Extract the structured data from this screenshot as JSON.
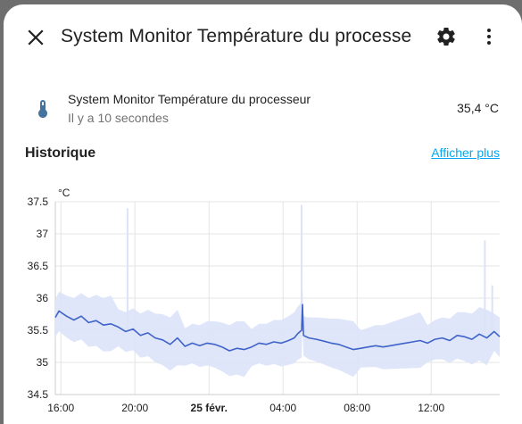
{
  "dialog": {
    "title": "System Monitor Température du processe",
    "close_icon": "close-icon",
    "settings_icon": "gear-icon",
    "more_icon": "dots-vertical-icon"
  },
  "entity": {
    "icon": "thermometer-icon",
    "name": "System Monitor Température du processeur",
    "last_changed": "Il y a 10 secondes",
    "value": "35,4 °C"
  },
  "history": {
    "title": "Historique",
    "show_more": "Afficher plus"
  },
  "colors": {
    "accent": "#03a9f4",
    "line": "#3f63c8",
    "band": "#dce3f8",
    "icon": "#44739e"
  },
  "chart_data": {
    "type": "line",
    "ylabel": "°C",
    "ylim": [
      34.5,
      37.5
    ],
    "y_ticks": [
      "37.5",
      "37",
      "36.5",
      "36",
      "35.5",
      "35",
      "34.5"
    ],
    "x_ticks": [
      {
        "label": "16:00",
        "bold": false
      },
      {
        "label": "20:00",
        "bold": false
      },
      {
        "label": "25 févr.",
        "bold": true
      },
      {
        "label": "04:00",
        "bold": false
      },
      {
        "label": "08:00",
        "bold": false
      },
      {
        "label": "12:00",
        "bold": false
      }
    ],
    "x_hours": [
      0,
      4,
      8,
      12,
      16,
      20
    ],
    "x_range_hours": [
      -0.3,
      23.7
    ],
    "series": [
      {
        "values": [
          [
            -0.3,
            35.7
          ],
          [
            -0.1,
            35.8
          ],
          [
            0.3,
            35.72
          ],
          [
            0.7,
            35.66
          ],
          [
            1.1,
            35.72
          ],
          [
            1.5,
            35.62
          ],
          [
            1.9,
            35.65
          ],
          [
            2.3,
            35.58
          ],
          [
            2.7,
            35.6
          ],
          [
            3.1,
            35.55
          ],
          [
            3.5,
            35.48
          ],
          [
            3.9,
            35.52
          ],
          [
            4.3,
            35.42
          ],
          [
            4.7,
            35.46
          ],
          [
            5.1,
            35.38
          ],
          [
            5.5,
            35.35
          ],
          [
            5.9,
            35.28
          ],
          [
            6.3,
            35.38
          ],
          [
            6.7,
            35.25
          ],
          [
            7.1,
            35.3
          ],
          [
            7.5,
            35.26
          ],
          [
            7.9,
            35.3
          ],
          [
            8.3,
            35.28
          ],
          [
            8.7,
            35.24
          ],
          [
            9.1,
            35.18
          ],
          [
            9.5,
            35.22
          ],
          [
            9.9,
            35.2
          ],
          [
            10.3,
            35.24
          ],
          [
            10.7,
            35.3
          ],
          [
            11.1,
            35.28
          ],
          [
            11.5,
            35.32
          ],
          [
            11.9,
            35.3
          ],
          [
            12.3,
            35.34
          ],
          [
            12.6,
            35.38
          ],
          [
            12.8,
            35.45
          ],
          [
            13.0,
            35.5
          ],
          [
            13.05,
            35.9
          ],
          [
            13.1,
            35.42
          ],
          [
            13.4,
            35.38
          ],
          [
            13.8,
            35.36
          ],
          [
            14.2,
            35.33
          ],
          [
            14.6,
            35.3
          ],
          [
            15.0,
            35.28
          ],
          [
            15.4,
            35.24
          ],
          [
            15.8,
            35.2
          ],
          [
            16.2,
            35.22
          ],
          [
            16.6,
            35.24
          ],
          [
            17.0,
            35.26
          ],
          [
            17.4,
            35.24
          ],
          [
            17.8,
            35.26
          ],
          [
            18.2,
            35.28
          ],
          [
            18.6,
            35.3
          ],
          [
            19.0,
            35.32
          ],
          [
            19.4,
            35.34
          ],
          [
            19.8,
            35.3
          ],
          [
            20.2,
            35.36
          ],
          [
            20.6,
            35.38
          ],
          [
            21.0,
            35.34
          ],
          [
            21.4,
            35.42
          ],
          [
            21.8,
            35.4
          ],
          [
            22.2,
            35.36
          ],
          [
            22.6,
            35.44
          ],
          [
            23.0,
            35.38
          ],
          [
            23.4,
            35.48
          ],
          [
            23.7,
            35.4
          ]
        ]
      }
    ]
  }
}
